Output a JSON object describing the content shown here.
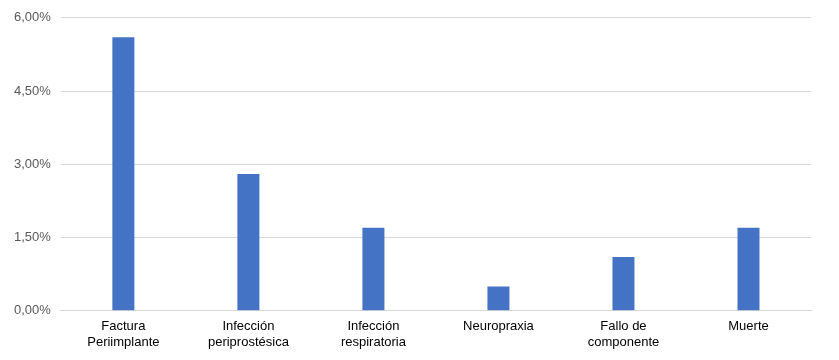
{
  "chart_data": {
    "type": "bar",
    "categories": [
      "Factura Periimplante",
      "Infección periprostésica",
      "Infección respiratoria",
      "Neuropraxia",
      "Fallo de componente",
      "Muerte"
    ],
    "values": [
      5.6,
      2.8,
      1.7,
      0.5,
      1.1,
      1.7
    ],
    "color": "#4472c4",
    "ylim": [
      0,
      6
    ],
    "yticks": [
      {
        "value": 0,
        "label": "0,00%"
      },
      {
        "value": 1.5,
        "label": "1,50%"
      },
      {
        "value": 3,
        "label": "3,00%"
      },
      {
        "value": 4.5,
        "label": "4,50%"
      },
      {
        "value": 6,
        "label": "6,00%"
      }
    ],
    "grid": true
  }
}
